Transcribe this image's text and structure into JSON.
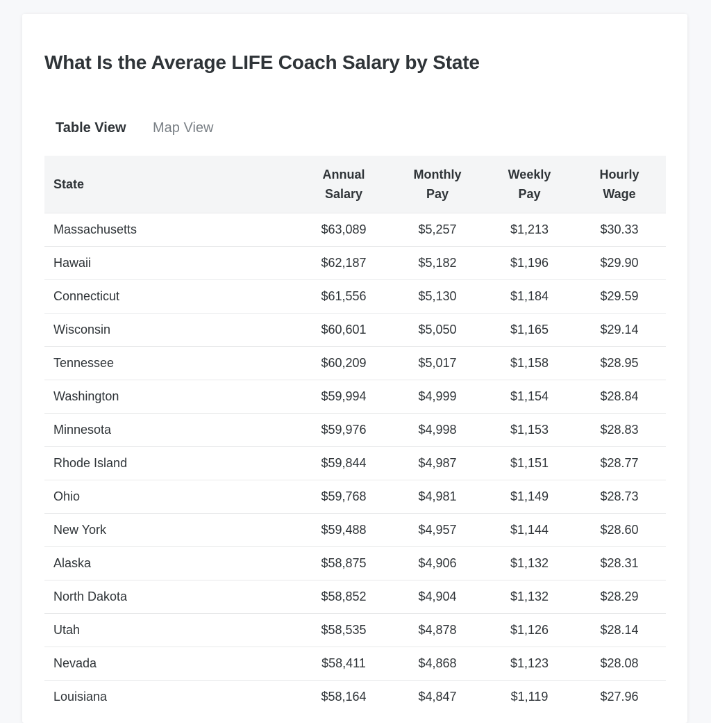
{
  "title": "What Is the Average LIFE Coach Salary by State",
  "tabs": [
    {
      "label": "Table View",
      "active": true
    },
    {
      "label": "Map View",
      "active": false
    }
  ],
  "accent_color": "#3d7f67",
  "table": {
    "headers": [
      [
        "State"
      ],
      [
        "Annual",
        "Salary"
      ],
      [
        "Monthly",
        "Pay"
      ],
      [
        "Weekly",
        "Pay"
      ],
      [
        "Hourly",
        "Wage"
      ]
    ],
    "rows": [
      [
        "Massachusetts",
        "$63,089",
        "$5,257",
        "$1,213",
        "$30.33"
      ],
      [
        "Hawaii",
        "$62,187",
        "$5,182",
        "$1,196",
        "$29.90"
      ],
      [
        "Connecticut",
        "$61,556",
        "$5,130",
        "$1,184",
        "$29.59"
      ],
      [
        "Wisconsin",
        "$60,601",
        "$5,050",
        "$1,165",
        "$29.14"
      ],
      [
        "Tennessee",
        "$60,209",
        "$5,017",
        "$1,158",
        "$28.95"
      ],
      [
        "Washington",
        "$59,994",
        "$4,999",
        "$1,154",
        "$28.84"
      ],
      [
        "Minnesota",
        "$59,976",
        "$4,998",
        "$1,153",
        "$28.83"
      ],
      [
        "Rhode Island",
        "$59,844",
        "$4,987",
        "$1,151",
        "$28.77"
      ],
      [
        "Ohio",
        "$59,768",
        "$4,981",
        "$1,149",
        "$28.73"
      ],
      [
        "New York",
        "$59,488",
        "$4,957",
        "$1,144",
        "$28.60"
      ],
      [
        "Alaska",
        "$58,875",
        "$4,906",
        "$1,132",
        "$28.31"
      ],
      [
        "North Dakota",
        "$58,852",
        "$4,904",
        "$1,132",
        "$28.29"
      ],
      [
        "Utah",
        "$58,535",
        "$4,878",
        "$1,126",
        "$28.14"
      ],
      [
        "Nevada",
        "$58,411",
        "$4,868",
        "$1,123",
        "$28.08"
      ],
      [
        "Louisiana",
        "$58,164",
        "$4,847",
        "$1,119",
        "$27.96"
      ]
    ]
  }
}
